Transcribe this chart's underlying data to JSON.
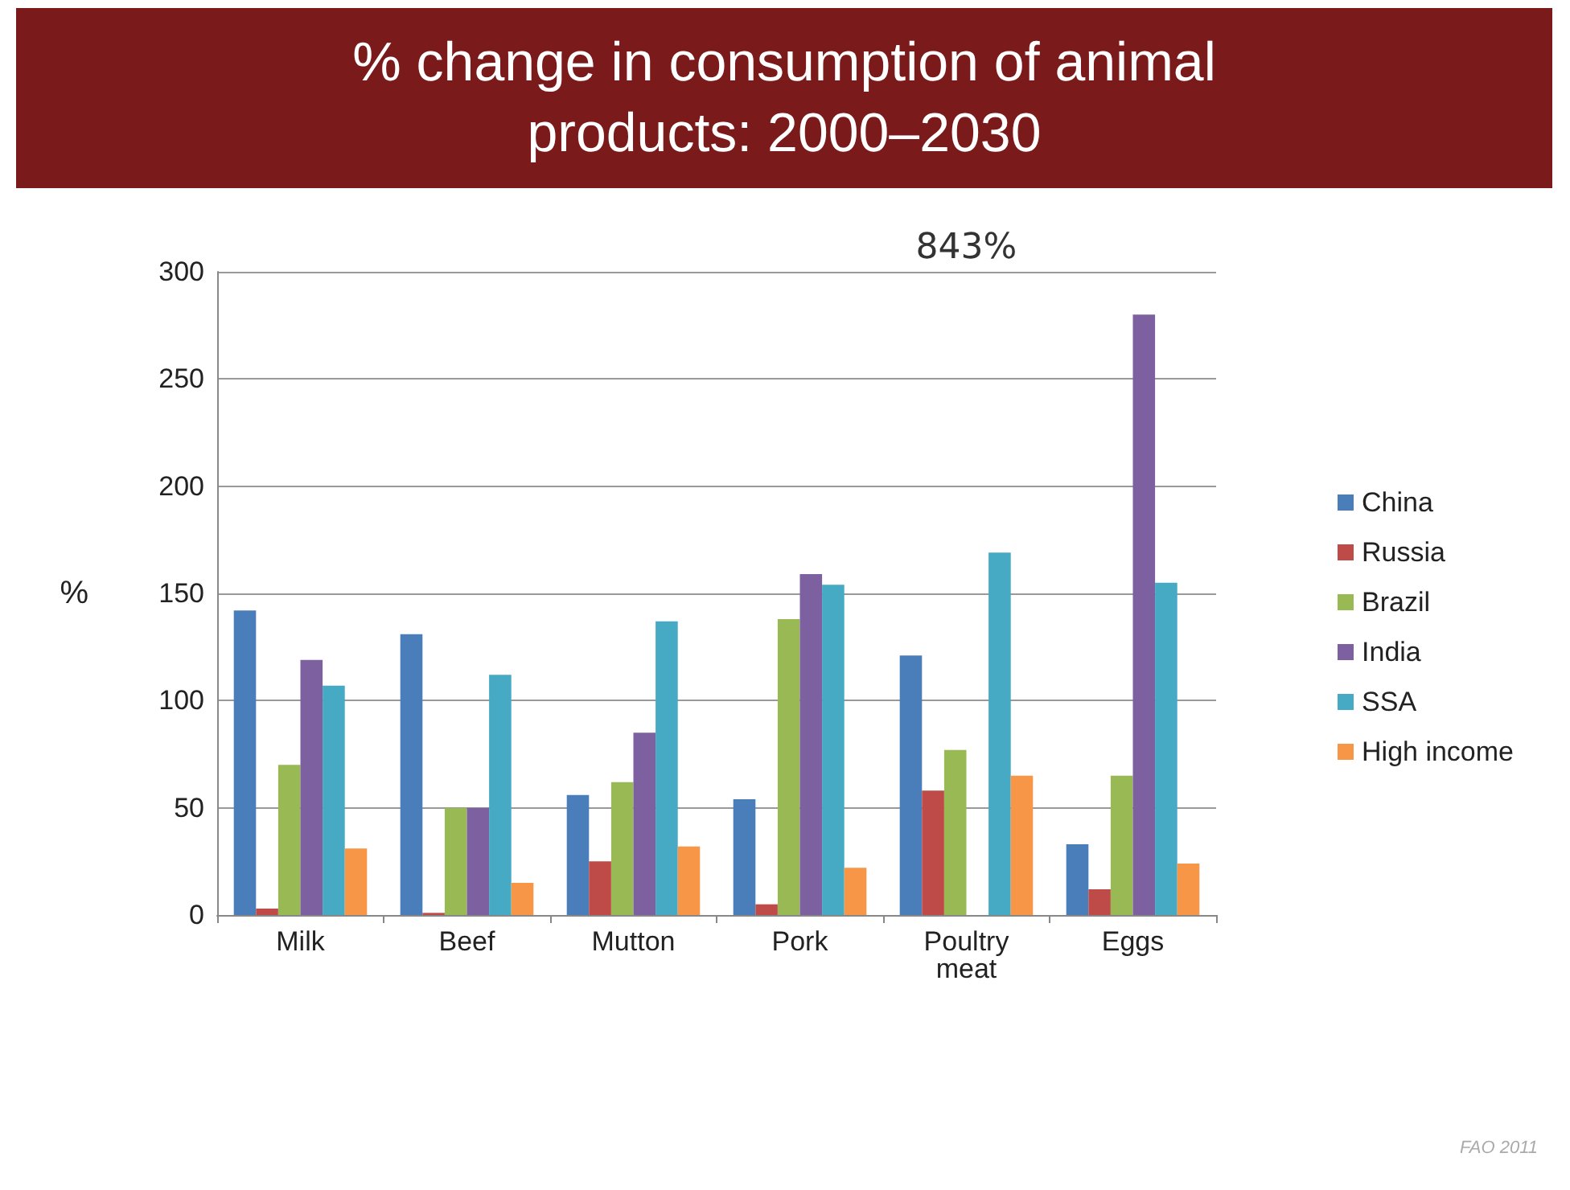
{
  "chart_data": {
    "type": "bar",
    "title": "% change in consumption of animal products: 2000–2030",
    "ylabel": "%",
    "categories": [
      "Milk",
      "Beef",
      "Mutton",
      "Pork",
      "Poultry meat",
      "Eggs"
    ],
    "series": [
      {
        "name": "China",
        "color": "#4a7ebb",
        "values": [
          142,
          131,
          56,
          54,
          121,
          33
        ]
      },
      {
        "name": "Russia",
        "color": "#be4b48",
        "values": [
          3,
          1,
          25,
          5,
          58,
          12
        ]
      },
      {
        "name": "Brazil",
        "color": "#98b954",
        "values": [
          70,
          50,
          62,
          138,
          77,
          65
        ]
      },
      {
        "name": "India",
        "color": "#7d60a0",
        "values": [
          119,
          50,
          85,
          159,
          null,
          280
        ]
      },
      {
        "name": "SSA",
        "color": "#46aac5",
        "values": [
          107,
          112,
          137,
          154,
          169,
          155
        ]
      },
      {
        "name": "High income",
        "color": "#f79646",
        "values": [
          31,
          15,
          32,
          22,
          65,
          24
        ]
      }
    ],
    "ylim": [
      0,
      300
    ],
    "yticks": [
      0,
      50,
      100,
      150,
      200,
      250,
      300
    ],
    "grid": "y",
    "legend": "right",
    "annotations": [
      "843%",
      "FAO 2011"
    ]
  }
}
